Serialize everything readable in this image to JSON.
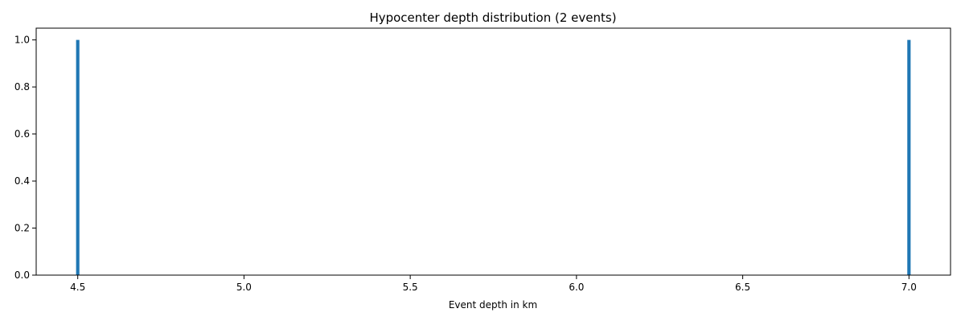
{
  "chart_data": {
    "type": "bar",
    "title": "Hypocenter depth distribution (2 events)",
    "xlabel": "Event depth in km",
    "ylabel": "",
    "xlim": [
      4.375,
      7.125
    ],
    "ylim": [
      0.0,
      1.05
    ],
    "xticks": [
      4.5,
      5.0,
      5.5,
      6.0,
      6.5,
      7.0
    ],
    "xtick_labels": [
      "4.5",
      "5.0",
      "5.5",
      "6.0",
      "6.5",
      "7.0"
    ],
    "yticks": [
      0.0,
      0.2,
      0.4,
      0.6,
      0.8,
      1.0
    ],
    "ytick_labels": [
      "0.0",
      "0.2",
      "0.4",
      "0.6",
      "0.8",
      "1.0"
    ],
    "bin_width": 0.01,
    "bars": [
      {
        "x": 4.5,
        "value": 1
      },
      {
        "x": 7.0,
        "value": 1
      }
    ],
    "grid": false,
    "bar_color": "#1f77b4"
  }
}
